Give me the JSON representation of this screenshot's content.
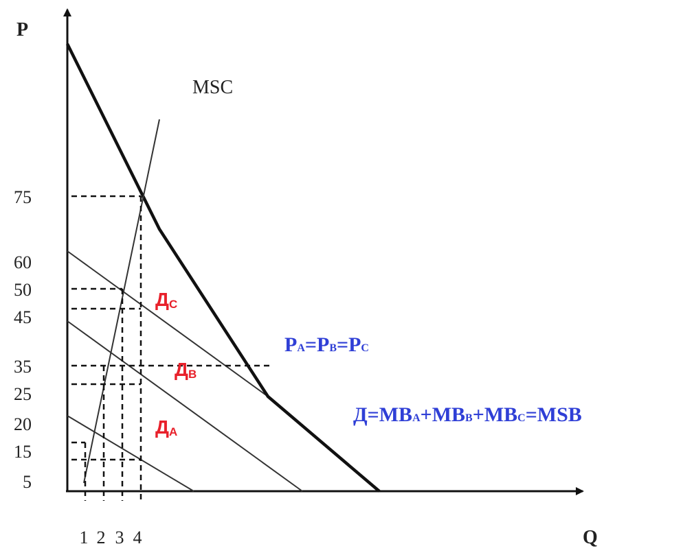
{
  "chart_data": {
    "type": "line",
    "xlabel": "Q",
    "ylabel": "P",
    "x_ticks": [
      "1",
      "2",
      "3",
      "4"
    ],
    "y_ticks": [
      "75",
      "60",
      "50",
      "45",
      "35",
      "25",
      "20",
      "15",
      "5"
    ],
    "msc_label": "MSC",
    "demand_labels": [
      {
        "main": "Д",
        "sub": "A"
      },
      {
        "main": "Д",
        "sub": "B"
      },
      {
        "main": "Д",
        "sub": "C"
      }
    ],
    "equation_prices": {
      "parts": [
        [
          "P",
          "A"
        ],
        [
          "=P",
          "B"
        ],
        [
          "=P",
          "C"
        ]
      ]
    },
    "equation_demand": {
      "parts": [
        [
          "Д=MB",
          "A"
        ],
        [
          "+MB",
          "B"
        ],
        [
          "+MB",
          "C"
        ],
        [
          "=MSB",
          ""
        ]
      ]
    },
    "colors": {
      "axis": "#111111",
      "demand_label": "#e8212b",
      "equation": "#2f3fd6"
    },
    "note": "y tick labels follow the printed positions; the price scale is not linear"
  }
}
